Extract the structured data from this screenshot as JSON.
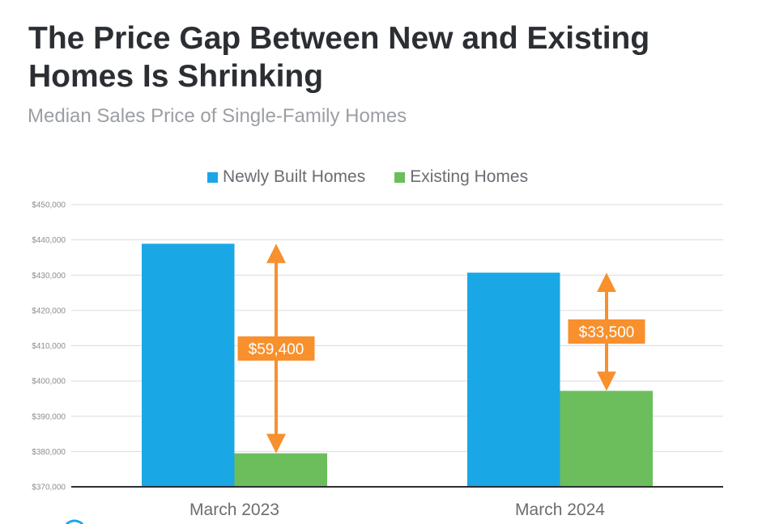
{
  "header": {
    "title": "The Price Gap Between New and Existing Homes Is Shrinking",
    "subtitle": "Median Sales Price of Single-Family Homes"
  },
  "colors": {
    "newly_built": "#1aa7e6",
    "existing": "#6cbe5c",
    "gap_annotation": "#f7902d",
    "grid": "#dcdcdc",
    "axis": "#2b2e33"
  },
  "chart_data": {
    "type": "bar",
    "title": "The Price Gap Between New and Existing Homes Is Shrinking",
    "subtitle": "Median Sales Price of Single-Family Homes",
    "categories": [
      "March 2023",
      "March 2024"
    ],
    "series": [
      {
        "name": "Newly Built Homes",
        "values": [
          438900,
          430700
        ]
      },
      {
        "name": "Existing Homes",
        "values": [
          379500,
          397200
        ]
      }
    ],
    "annotations": [
      {
        "category": "March 2023",
        "label": "$59,400",
        "value": 59400
      },
      {
        "category": "March 2024",
        "label": "$33,500",
        "value": 33500
      }
    ],
    "xlabel": "",
    "ylabel": "",
    "ylim": [
      370000,
      450000
    ],
    "yticks": [
      370000,
      380000,
      390000,
      400000,
      410000,
      420000,
      430000,
      440000,
      450000
    ],
    "ytick_labels": [
      "$370,000",
      "$380,000",
      "$390,000",
      "$400,000",
      "$410,000",
      "$420,000",
      "$430,000",
      "$440,000",
      "$450,000"
    ],
    "grid": true,
    "legend": "top-center"
  }
}
